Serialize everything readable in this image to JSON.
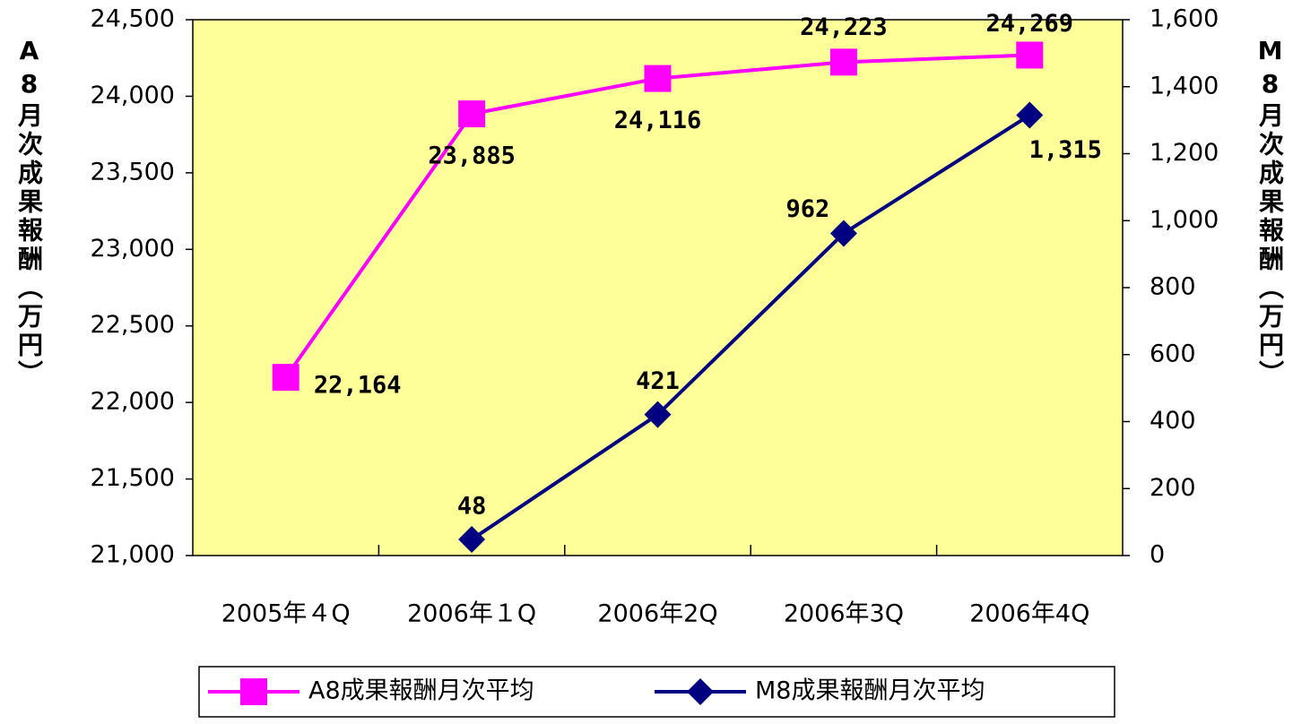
{
  "chart_data": {
    "type": "line",
    "categories": [
      "2005年４Q",
      "2006年１Q",
      "2006年2Q",
      "2006年3Q",
      "2006年4Q"
    ],
    "series": [
      {
        "name": "A8成果報酬月次平均",
        "color": "#ff00ff",
        "marker": "square",
        "values": [
          22164,
          23885,
          24116,
          24223,
          24269
        ],
        "value_labels": [
          "22,164",
          "23,885",
          "24,116",
          "24,223",
          "24,269"
        ]
      },
      {
        "name": "M8成果報酬月次平均",
        "color": "#000080",
        "marker": "diamond",
        "axis": "y2",
        "values": [
          null,
          48,
          421,
          962,
          1315
        ],
        "value_labels": [
          null,
          "48",
          "421",
          "962",
          "1,315"
        ]
      }
    ],
    "ylabel": "A8月次成果報酬（万円）",
    "y2label": "M8月次成果報酬（万円）",
    "ylim": [
      21000,
      24500
    ],
    "yticks": [
      {
        "value": 21000,
        "label": "21,000"
      },
      {
        "value": 21500,
        "label": "21,500"
      },
      {
        "value": 22000,
        "label": "22,000"
      },
      {
        "value": 22500,
        "label": "22,500"
      },
      {
        "value": 23000,
        "label": "23,000"
      },
      {
        "value": 23500,
        "label": "23,500"
      },
      {
        "value": 24000,
        "label": "24,000"
      },
      {
        "value": 24500,
        "label": "24,500"
      }
    ],
    "y2lim": [
      0,
      1600
    ],
    "y2ticks": [
      0,
      200,
      400,
      600,
      800,
      {
        "value": 1000,
        "label": "1,000"
      },
      {
        "value": 1200,
        "label": "1,200"
      },
      {
        "value": 1400,
        "label": "1,400"
      },
      {
        "value": 1600,
        "label": "1,600"
      }
    ],
    "legend": "bottom"
  }
}
